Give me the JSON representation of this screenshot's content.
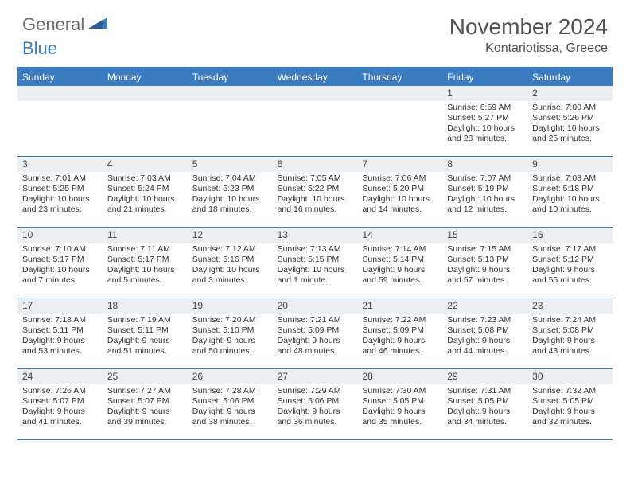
{
  "logo": {
    "part1": "General",
    "part2": "Blue"
  },
  "title": "November 2024",
  "location": "Kontariotissa, Greece",
  "colors": {
    "primary": "#3b7bbf",
    "header_bg": "#3b7bbf",
    "daynum_bg": "#eceff1",
    "text": "#333333",
    "title_text": "#505050",
    "logo_gray": "#6b6b6b"
  },
  "days_of_week": [
    "Sunday",
    "Monday",
    "Tuesday",
    "Wednesday",
    "Thursday",
    "Friday",
    "Saturday"
  ],
  "weeks": [
    [
      null,
      null,
      null,
      null,
      null,
      {
        "n": "1",
        "sr": "6:59 AM",
        "ss": "5:27 PM",
        "dl": "10 hours and 28 minutes."
      },
      {
        "n": "2",
        "sr": "7:00 AM",
        "ss": "5:26 PM",
        "dl": "10 hours and 25 minutes."
      }
    ],
    [
      {
        "n": "3",
        "sr": "7:01 AM",
        "ss": "5:25 PM",
        "dl": "10 hours and 23 minutes."
      },
      {
        "n": "4",
        "sr": "7:03 AM",
        "ss": "5:24 PM",
        "dl": "10 hours and 21 minutes."
      },
      {
        "n": "5",
        "sr": "7:04 AM",
        "ss": "5:23 PM",
        "dl": "10 hours and 18 minutes."
      },
      {
        "n": "6",
        "sr": "7:05 AM",
        "ss": "5:22 PM",
        "dl": "10 hours and 16 minutes."
      },
      {
        "n": "7",
        "sr": "7:06 AM",
        "ss": "5:20 PM",
        "dl": "10 hours and 14 minutes."
      },
      {
        "n": "8",
        "sr": "7:07 AM",
        "ss": "5:19 PM",
        "dl": "10 hours and 12 minutes."
      },
      {
        "n": "9",
        "sr": "7:08 AM",
        "ss": "5:18 PM",
        "dl": "10 hours and 10 minutes."
      }
    ],
    [
      {
        "n": "10",
        "sr": "7:10 AM",
        "ss": "5:17 PM",
        "dl": "10 hours and 7 minutes."
      },
      {
        "n": "11",
        "sr": "7:11 AM",
        "ss": "5:17 PM",
        "dl": "10 hours and 5 minutes."
      },
      {
        "n": "12",
        "sr": "7:12 AM",
        "ss": "5:16 PM",
        "dl": "10 hours and 3 minutes."
      },
      {
        "n": "13",
        "sr": "7:13 AM",
        "ss": "5:15 PM",
        "dl": "10 hours and 1 minute."
      },
      {
        "n": "14",
        "sr": "7:14 AM",
        "ss": "5:14 PM",
        "dl": "9 hours and 59 minutes."
      },
      {
        "n": "15",
        "sr": "7:15 AM",
        "ss": "5:13 PM",
        "dl": "9 hours and 57 minutes."
      },
      {
        "n": "16",
        "sr": "7:17 AM",
        "ss": "5:12 PM",
        "dl": "9 hours and 55 minutes."
      }
    ],
    [
      {
        "n": "17",
        "sr": "7:18 AM",
        "ss": "5:11 PM",
        "dl": "9 hours and 53 minutes."
      },
      {
        "n": "18",
        "sr": "7:19 AM",
        "ss": "5:11 PM",
        "dl": "9 hours and 51 minutes."
      },
      {
        "n": "19",
        "sr": "7:20 AM",
        "ss": "5:10 PM",
        "dl": "9 hours and 50 minutes."
      },
      {
        "n": "20",
        "sr": "7:21 AM",
        "ss": "5:09 PM",
        "dl": "9 hours and 48 minutes."
      },
      {
        "n": "21",
        "sr": "7:22 AM",
        "ss": "5:09 PM",
        "dl": "9 hours and 46 minutes."
      },
      {
        "n": "22",
        "sr": "7:23 AM",
        "ss": "5:08 PM",
        "dl": "9 hours and 44 minutes."
      },
      {
        "n": "23",
        "sr": "7:24 AM",
        "ss": "5:08 PM",
        "dl": "9 hours and 43 minutes."
      }
    ],
    [
      {
        "n": "24",
        "sr": "7:26 AM",
        "ss": "5:07 PM",
        "dl": "9 hours and 41 minutes."
      },
      {
        "n": "25",
        "sr": "7:27 AM",
        "ss": "5:07 PM",
        "dl": "9 hours and 39 minutes."
      },
      {
        "n": "26",
        "sr": "7:28 AM",
        "ss": "5:06 PM",
        "dl": "9 hours and 38 minutes."
      },
      {
        "n": "27",
        "sr": "7:29 AM",
        "ss": "5:06 PM",
        "dl": "9 hours and 36 minutes."
      },
      {
        "n": "28",
        "sr": "7:30 AM",
        "ss": "5:05 PM",
        "dl": "9 hours and 35 minutes."
      },
      {
        "n": "29",
        "sr": "7:31 AM",
        "ss": "5:05 PM",
        "dl": "9 hours and 34 minutes."
      },
      {
        "n": "30",
        "sr": "7:32 AM",
        "ss": "5:05 PM",
        "dl": "9 hours and 32 minutes."
      }
    ]
  ],
  "labels": {
    "sunrise": "Sunrise:",
    "sunset": "Sunset:",
    "daylight": "Daylight:"
  }
}
